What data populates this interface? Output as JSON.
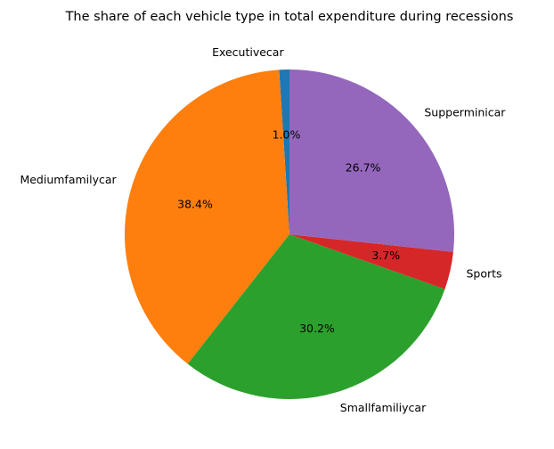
{
  "chart_data": {
    "type": "pie",
    "title": "The share of each vehicle type in total expenditure during recessions",
    "start_angle_deg": 90,
    "counterclockwise": true,
    "slices": [
      {
        "label": "Executivecar",
        "value": 1.0,
        "pct_label": "1.0%",
        "color": "#1f77b4"
      },
      {
        "label": "Mediumfamilycar",
        "value": 38.4,
        "pct_label": "38.4%",
        "color": "#ff7f0e"
      },
      {
        "label": "Smallfamiliycar",
        "value": 30.2,
        "pct_label": "30.2%",
        "color": "#2ca02c"
      },
      {
        "label": "Sports",
        "value": 3.7,
        "pct_label": "3.7%",
        "color": "#d62728"
      },
      {
        "label": "Supperminicar",
        "value": 26.7,
        "pct_label": "26.7%",
        "color": "#9467bd"
      }
    ]
  }
}
